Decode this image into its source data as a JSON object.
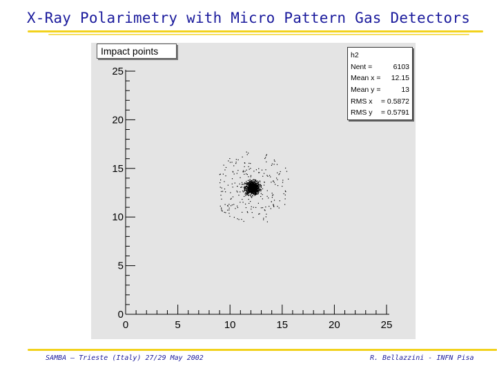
{
  "slide": {
    "title": "X-Ray Polarimetry with Micro Pattern Gas Detectors",
    "footer_left": "SAMBA – Trieste (Italy)  27/29 May 2002",
    "footer_right": "R. Bellazzini - INFN Pisa",
    "accent_color": "#1a1a9c",
    "highlight_color": "#f2d21c"
  },
  "chart_data": {
    "type": "scatter",
    "title": "Impact points",
    "xlim": [
      0,
      25
    ],
    "ylim": [
      0,
      25
    ],
    "xticks": [
      "0",
      "5",
      "10",
      "15",
      "20",
      "25"
    ],
    "yticks": [
      "0",
      "5",
      "10",
      "15",
      "20",
      "25"
    ],
    "grid": false,
    "frame_color": "#e4e4e4",
    "marker_color": "#000000",
    "center": [
      12.15,
      13
    ],
    "core_rms": [
      0.5872,
      0.5791
    ],
    "halo_x_range": [
      9,
      16.5
    ],
    "halo_y_range": [
      9.5,
      17
    ],
    "stats": {
      "name": "h2",
      "rows": [
        {
          "label": "Nent =",
          "value": "6103"
        },
        {
          "label": "Mean x =",
          "value": "12.15"
        },
        {
          "label": "Mean y =",
          "value": "13"
        },
        {
          "label": "RMS x",
          "value": "= 0.5872"
        },
        {
          "label": "RMS y",
          "value": "= 0.5791"
        }
      ]
    }
  }
}
